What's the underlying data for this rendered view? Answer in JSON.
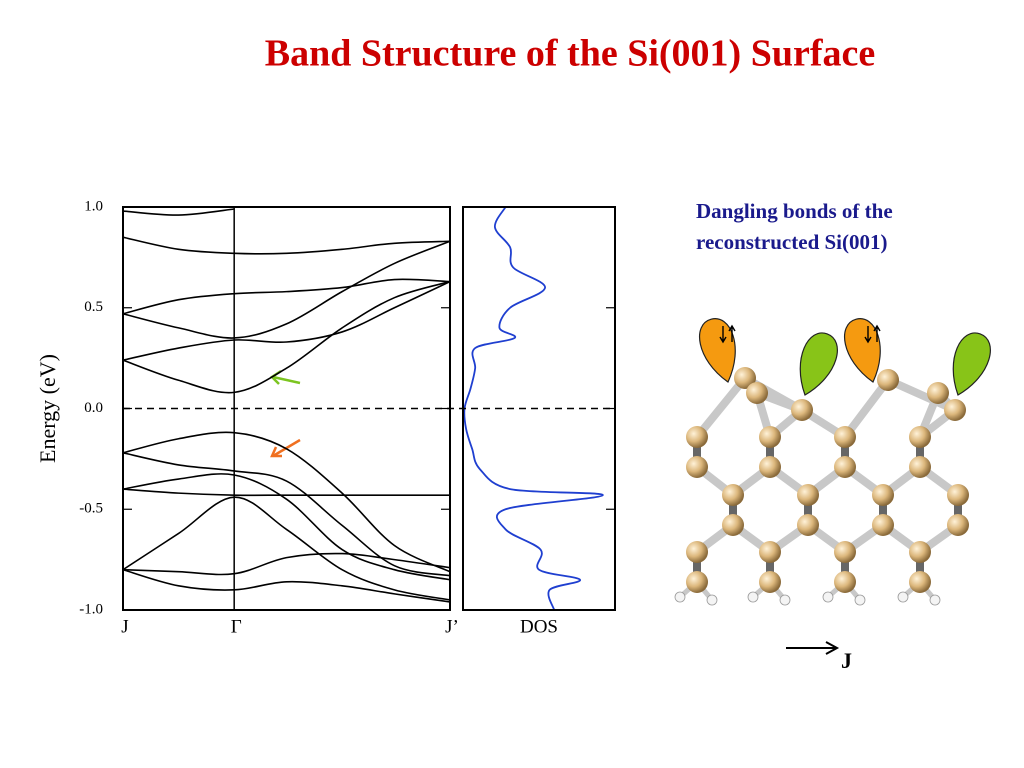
{
  "title": "Band Structure of the Si(001) Surface",
  "caption": "Dangling bonds of the reconstructed Si(001)",
  "direction_label": "J",
  "chart_data": [
    {
      "type": "line",
      "ylabel": "Energy (eV)",
      "xlim": [
        0,
        1
      ],
      "xticks": [
        {
          "value": 0,
          "label": "J"
        },
        {
          "value": 0.34,
          "label": "Γ"
        },
        {
          "value": 1,
          "label": "J’"
        }
      ],
      "ylim": [
        -1,
        1
      ],
      "yticks": [
        {
          "value": 1,
          "label": "1.0"
        },
        {
          "value": 0.5,
          "label": "0.5"
        },
        {
          "value": 0,
          "label": "0.0"
        },
        {
          "value": -0.5,
          "label": "-0.5"
        },
        {
          "value": -1,
          "label": "-1.0"
        }
      ],
      "reference_line": 0,
      "x": [
        0,
        0.17,
        0.34,
        0.5,
        0.67,
        0.83,
        1
      ],
      "series": [
        {
          "color": "#000000",
          "values": [
            0.24,
            0.14,
            0.08,
            0.2,
            0.4,
            0.55,
            0.63
          ]
        },
        {
          "color": "#000000",
          "values": [
            0.24,
            0.3,
            0.34,
            0.33,
            0.38,
            0.5,
            0.63
          ]
        },
        {
          "color": "#000000",
          "values": [
            0.47,
            0.4,
            0.35,
            0.42,
            0.58,
            0.72,
            0.83
          ]
        },
        {
          "color": "#000000",
          "values": [
            0.47,
            0.54,
            0.57,
            0.58,
            0.6,
            0.64,
            0.63
          ]
        },
        {
          "color": "#000000",
          "values": [
            0.85,
            0.79,
            0.77,
            0.77,
            0.79,
            0.82,
            0.83
          ]
        },
        {
          "color": "#000000",
          "values": [
            0.98,
            0.96,
            0.99,
            null,
            null,
            null,
            null
          ]
        },
        {
          "color": "#000000",
          "values": [
            -0.22,
            -0.15,
            -0.12,
            -0.2,
            -0.42,
            -0.68,
            -0.81
          ]
        },
        {
          "color": "#000000",
          "values": [
            -0.22,
            -0.28,
            -0.31,
            -0.36,
            -0.58,
            -0.78,
            -0.83
          ]
        },
        {
          "color": "#000000",
          "values": [
            -0.4,
            -0.35,
            -0.33,
            -0.45,
            -0.7,
            -0.8,
            -0.85
          ]
        },
        {
          "color": "#000000",
          "values": [
            -0.4,
            -0.42,
            -0.43,
            -0.43,
            -0.43,
            -0.43,
            -0.43
          ]
        },
        {
          "color": "#000000",
          "values": [
            -0.8,
            -0.62,
            -0.44,
            -0.6,
            -0.8,
            -0.9,
            -0.95
          ]
        },
        {
          "color": "#000000",
          "values": [
            -0.8,
            -0.81,
            -0.82,
            -0.74,
            -0.72,
            -0.75,
            -0.79
          ]
        },
        {
          "color": "#000000",
          "values": [
            -0.8,
            -0.88,
            -0.9,
            -0.86,
            -0.88,
            -0.92,
            -0.96
          ]
        }
      ]
    },
    {
      "type": "line",
      "xlabel": "DOS",
      "color": "#1f3fd0",
      "xlim": [
        0,
        1
      ],
      "ylim": [
        -1,
        1
      ],
      "y": [
        1.0,
        0.9,
        0.8,
        0.7,
        0.6,
        0.5,
        0.4,
        0.35,
        0.3,
        0.2,
        0.1,
        0.0,
        -0.1,
        -0.2,
        -0.3,
        -0.4,
        -0.43,
        -0.5,
        -0.6,
        -0.7,
        -0.8,
        -0.85,
        -0.9,
        -1.0
      ],
      "values": [
        0.28,
        0.21,
        0.31,
        0.33,
        0.54,
        0.31,
        0.24,
        0.34,
        0.08,
        0.08,
        0.05,
        0.01,
        0.02,
        0.06,
        0.11,
        0.31,
        0.92,
        0.28,
        0.28,
        0.51,
        0.5,
        0.77,
        0.57,
        0.6
      ]
    }
  ]
}
